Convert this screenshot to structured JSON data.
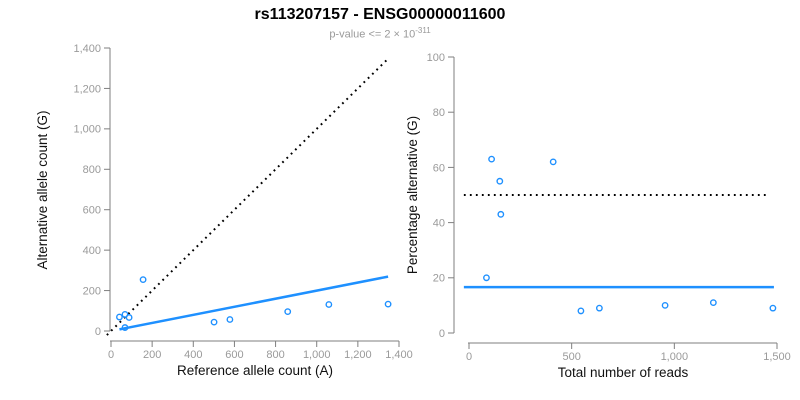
{
  "header": {
    "title": "rs113207157 - ENSG00000011600",
    "subtitle_prefix": "p-value <= 2 × 10",
    "subtitle_exponent": "-311"
  },
  "colors": {
    "accent_blue": "#1E90FF",
    "reference_black": "#000000",
    "axis_gray": "#7f7f7f",
    "tick_label_gray": "#9a9a9a"
  },
  "chart_data": [
    {
      "type": "scatter",
      "title": "",
      "xlabel": "Reference allele count (A)",
      "ylabel": "Alternative allele count (G)",
      "xlim": [
        0,
        1400
      ],
      "ylim": [
        0,
        1400
      ],
      "grid": false,
      "legend": null,
      "xtick_values": [
        0,
        200,
        400,
        600,
        800,
        1000,
        1200,
        1400
      ],
      "xtick_labels": [
        "0",
        "200",
        "400",
        "600",
        "800",
        "1,000",
        "1,200",
        "1,400"
      ],
      "ytick_values": [
        0,
        200,
        400,
        600,
        800,
        1000,
        1200,
        1400
      ],
      "ytick_labels": [
        "0",
        "200",
        "400",
        "600",
        "800",
        "1,000",
        "1,200",
        "1,400"
      ],
      "points": [
        [
          41,
          69
        ],
        [
          68,
          82
        ],
        [
          88,
          67
        ],
        [
          68,
          17
        ],
        [
          156,
          254
        ],
        [
          501,
          44
        ],
        [
          578,
          57
        ],
        [
          859,
          96
        ],
        [
          1059,
          131
        ],
        [
          1347,
          133
        ]
      ],
      "lines": [
        {
          "name": "identity-reference-line",
          "style": "dotted",
          "color": "#000000",
          "coords": [
            [
              -20,
              -20
            ],
            [
              1345,
              1345
            ]
          ]
        },
        {
          "name": "regression-line",
          "style": "solid",
          "color": "#1E90FF",
          "coords": [
            [
              41,
              8
            ],
            [
              1347,
              269
            ]
          ]
        }
      ]
    },
    {
      "type": "scatter",
      "title": "",
      "xlabel": "Total number of reads",
      "ylabel": "Percentage alternative (G)",
      "xlim": [
        0,
        1500
      ],
      "ylim": [
        0,
        100
      ],
      "grid": false,
      "legend": null,
      "xtick_values": [
        0,
        500,
        1000,
        1500
      ],
      "xtick_labels": [
        "0",
        "500",
        "1,000",
        "1,500"
      ],
      "ytick_values": [
        0,
        20,
        40,
        60,
        80,
        100
      ],
      "ytick_labels": [
        "0",
        "20",
        "40",
        "60",
        "80",
        "100"
      ],
      "points": [
        [
          110,
          63
        ],
        [
          150,
          55
        ],
        [
          155,
          43
        ],
        [
          85,
          20
        ],
        [
          410,
          62
        ],
        [
          545,
          8
        ],
        [
          635,
          9
        ],
        [
          955,
          10
        ],
        [
          1190,
          11
        ],
        [
          1480,
          9
        ]
      ],
      "lines": [
        {
          "name": "fifty-percent-reference-line",
          "style": "dotted",
          "color": "#000000",
          "coords": [
            [
              -25,
              50
            ],
            [
              1450,
              50
            ]
          ]
        },
        {
          "name": "mean-percentage-line",
          "style": "solid",
          "color": "#1E90FF",
          "coords": [
            [
              -25,
              16.6
            ],
            [
              1485,
              16.6
            ]
          ]
        }
      ]
    }
  ]
}
